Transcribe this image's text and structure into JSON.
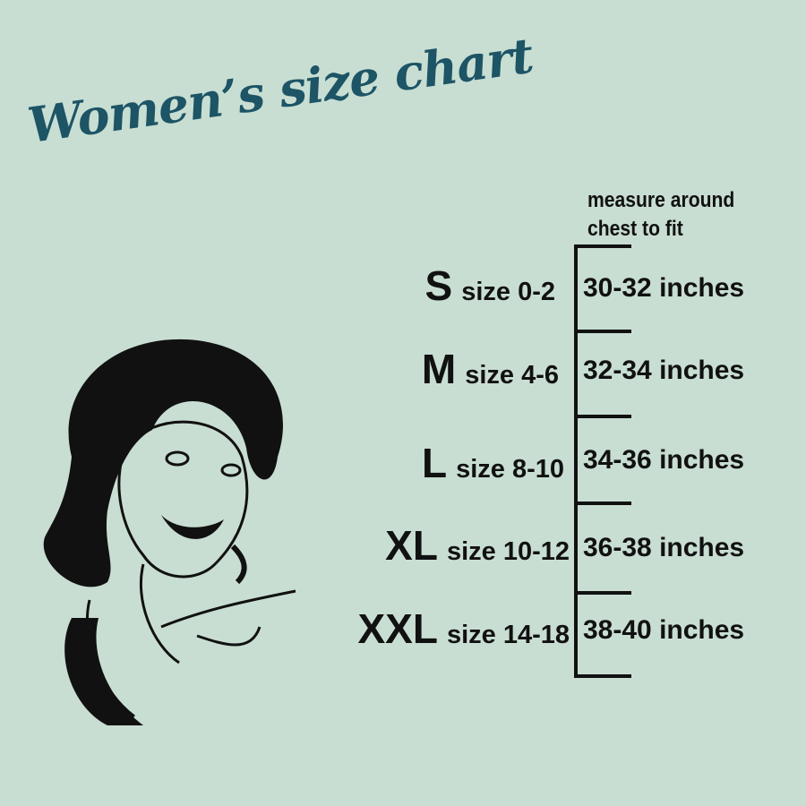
{
  "title": "Women’s size chart",
  "header": {
    "line1": "measure around",
    "line2": "chest to fit"
  },
  "sizes": [
    {
      "letter": "S",
      "size": "size 0-2",
      "chest": "30-32 inches"
    },
    {
      "letter": "M",
      "size": "size 4-6",
      "chest": "32-34 inches"
    },
    {
      "letter": "L",
      "size": "size 8-10",
      "chest": "34-36 inches"
    },
    {
      "letter": "XL",
      "size": "size 10-12",
      "chest": "36-38 inches"
    },
    {
      "letter": "XXL",
      "size": "size 14-18",
      "chest": "38-40 inches"
    }
  ],
  "colors": {
    "background": "#c8ded2",
    "title": "#1d5466",
    "text": "#111111"
  }
}
